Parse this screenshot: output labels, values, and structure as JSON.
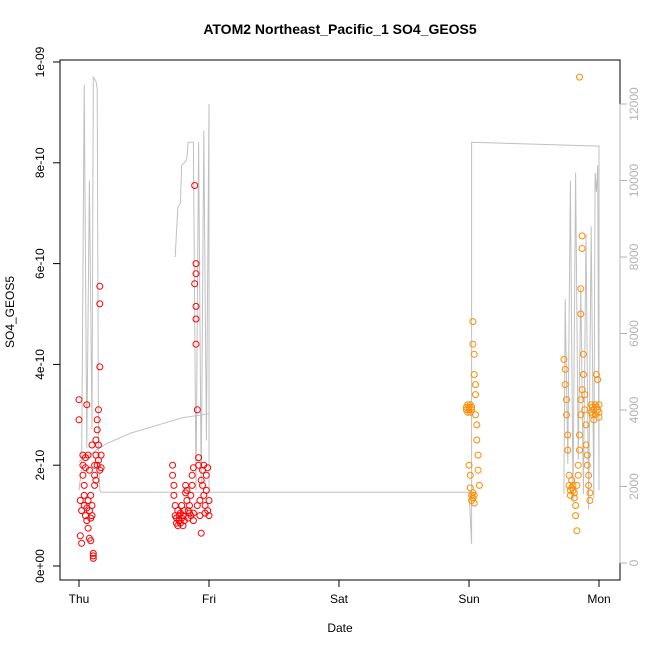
{
  "chart_data": {
    "type": "scatter",
    "title": "ATOM2 Northeast_Pacific_1 SO4_GEOS5",
    "xlabel": "Date",
    "ylabel": "SO4_GEOS5",
    "x_ticks": [
      "Thu",
      "Fri",
      "Sat",
      "Sun",
      "Mon"
    ],
    "y_ticks": [
      "0e+00",
      "2e-10",
      "4e-10",
      "6e-10",
      "8e-10",
      "1e-09"
    ],
    "y_tick_values": [
      0,
      2e-10,
      4e-10,
      6e-10,
      8e-10,
      1e-09
    ],
    "y_right_ticks": [
      "0",
      "2000",
      "4000",
      "6000",
      "8000",
      "10000",
      "12000"
    ],
    "y_right_tick_values": [
      0,
      2000,
      4000,
      6000,
      8000,
      10000,
      12000
    ],
    "xlim_days": [
      0,
      4
    ],
    "ylim": [
      0,
      1e-09
    ],
    "y_right_lim": [
      0,
      13400
    ],
    "colors": {
      "red": "#ff0000",
      "orange": "#ff8c00",
      "altitude": "#c0c0c0"
    },
    "series": [
      {
        "color": "red",
        "points": [
          [
            0.0,
            3.3e-10
          ],
          [
            0.0,
            2.9e-10
          ],
          [
            0.01,
            1.3e-10
          ],
          [
            0.01,
            6e-11
          ],
          [
            0.02,
            4.5e-11
          ],
          [
            0.02,
            1.1e-10
          ],
          [
            0.03,
            2.2e-10
          ],
          [
            0.03,
            2e-10
          ],
          [
            0.03,
            1.8e-10
          ],
          [
            0.04,
            1.6e-10
          ],
          [
            0.04,
            1.4e-10
          ],
          [
            0.04,
            1.2e-10
          ],
          [
            0.05,
            1e-10
          ],
          [
            0.05,
            2.15e-10
          ],
          [
            0.05,
            1.95e-10
          ],
          [
            0.06,
            9e-11
          ],
          [
            0.06,
            1.15e-10
          ],
          [
            0.06,
            3.2e-10
          ],
          [
            0.07,
            7.5e-11
          ],
          [
            0.07,
            1.3e-10
          ],
          [
            0.07,
            2.2e-10
          ],
          [
            0.08,
            5.5e-11
          ],
          [
            0.08,
            1.1e-10
          ],
          [
            0.08,
            1.9e-10
          ],
          [
            0.09,
            5e-11
          ],
          [
            0.09,
            9.5e-11
          ],
          [
            0.09,
            1.4e-10
          ],
          [
            0.1,
            1.2e-10
          ],
          [
            0.1,
            2.4e-10
          ],
          [
            0.1,
            1e-10
          ],
          [
            0.11,
            2.5e-11
          ],
          [
            0.11,
            1.5e-11
          ],
          [
            0.11,
            2e-11
          ],
          [
            0.12,
            1.6e-10
          ],
          [
            0.12,
            2e-10
          ],
          [
            0.12,
            1.8e-10
          ],
          [
            0.13,
            2.2e-10
          ],
          [
            0.13,
            2.5e-10
          ],
          [
            0.13,
            1.7e-10
          ],
          [
            0.14,
            2.7e-10
          ],
          [
            0.14,
            2.9e-10
          ],
          [
            0.14,
            2e-10
          ],
          [
            0.15,
            3.1e-10
          ],
          [
            0.15,
            2.1e-10
          ],
          [
            0.15,
            2.4e-10
          ],
          [
            0.16,
            1.9e-10
          ],
          [
            0.16,
            3.95e-10
          ],
          [
            0.16,
            5.55e-10
          ],
          [
            0.16,
            5.2e-10
          ],
          [
            0.17,
            2.2e-10
          ],
          [
            0.17,
            1.95e-10
          ],
          [
            0.72,
            2e-10
          ],
          [
            0.72,
            1.8e-10
          ],
          [
            0.73,
            1.6e-10
          ],
          [
            0.73,
            1.4e-10
          ],
          [
            0.74,
            1.2e-10
          ],
          [
            0.74,
            1e-10
          ],
          [
            0.75,
            8.5e-11
          ],
          [
            0.75,
            9.5e-11
          ],
          [
            0.76,
            1.1e-10
          ],
          [
            0.76,
            8e-11
          ],
          [
            0.77,
            9e-11
          ],
          [
            0.77,
            1e-10
          ],
          [
            0.78,
            8.5e-11
          ],
          [
            0.78,
            1.05e-10
          ],
          [
            0.79,
            9.5e-11
          ],
          [
            0.79,
            1.2e-10
          ],
          [
            0.8,
            1e-10
          ],
          [
            0.8,
            8e-11
          ],
          [
            0.81,
            9e-11
          ],
          [
            0.81,
            1.1e-10
          ],
          [
            0.82,
            1.45e-10
          ],
          [
            0.82,
            1.6e-10
          ],
          [
            0.83,
            1.5e-10
          ],
          [
            0.83,
            1.3e-10
          ],
          [
            0.84,
            1.1e-10
          ],
          [
            0.84,
            9.5e-11
          ],
          [
            0.85,
            1.2e-10
          ],
          [
            0.85,
            1.05e-10
          ],
          [
            0.86,
            1e-10
          ],
          [
            0.86,
            1.4e-10
          ],
          [
            0.87,
            1.6e-10
          ],
          [
            0.87,
            1.8e-10
          ],
          [
            0.88,
            1.95e-10
          ],
          [
            0.88,
            9e-11
          ],
          [
            0.88,
            1.05e-10
          ],
          [
            0.89,
            7.55e-10
          ],
          [
            0.89,
            5.6e-10
          ],
          [
            0.9,
            6e-10
          ],
          [
            0.9,
            5.8e-10
          ],
          [
            0.9,
            5.15e-10
          ],
          [
            0.9,
            4.9e-10
          ],
          [
            0.9,
            4.4e-10
          ],
          [
            0.91,
            3.1e-10
          ],
          [
            0.91,
            1.2e-10
          ],
          [
            0.92,
            2.15e-10
          ],
          [
            0.92,
            2e-10
          ],
          [
            0.93,
            1.3e-10
          ],
          [
            0.93,
            1e-10
          ],
          [
            0.94,
            6.5e-11
          ],
          [
            0.94,
            1.7e-10
          ],
          [
            0.95,
            1.9e-10
          ],
          [
            0.95,
            1.6e-10
          ],
          [
            0.96,
            2e-10
          ],
          [
            0.96,
            1.4e-10
          ],
          [
            0.97,
            1.2e-10
          ],
          [
            0.97,
            1.05e-10
          ],
          [
            0.98,
            1.8e-10
          ],
          [
            0.98,
            1.5e-10
          ],
          [
            0.99,
            1.95e-10
          ],
          [
            0.99,
            1.1e-10
          ],
          [
            1.0,
            1e-10
          ],
          [
            1.0,
            1.3e-10
          ]
        ]
      },
      {
        "color": "orange",
        "points": [
          [
            2.98,
            3.15e-10
          ],
          [
            2.98,
            3.1e-10
          ],
          [
            2.99,
            3.2e-10
          ],
          [
            2.99,
            3.05e-10
          ],
          [
            3.0,
            3.15e-10
          ],
          [
            3.0,
            3.1e-10
          ],
          [
            3.01,
            3.2e-10
          ],
          [
            3.01,
            3.05e-10
          ],
          [
            3.02,
            3.15e-10
          ],
          [
            3.02,
            3.1e-10
          ],
          [
            3.0,
            2e-10
          ],
          [
            3.01,
            1.8e-10
          ],
          [
            3.01,
            1.55e-10
          ],
          [
            3.02,
            1.4e-10
          ],
          [
            3.02,
            1.3e-10
          ],
          [
            3.03,
            1.45e-10
          ],
          [
            3.03,
            1.35e-10
          ],
          [
            3.04,
            1.4e-10
          ],
          [
            3.04,
            1.25e-10
          ],
          [
            3.03,
            4.85e-10
          ],
          [
            3.03,
            4.4e-10
          ],
          [
            3.04,
            4.2e-10
          ],
          [
            3.04,
            3.8e-10
          ],
          [
            3.05,
            3.6e-10
          ],
          [
            3.05,
            3.4e-10
          ],
          [
            3.05,
            3e-10
          ],
          [
            3.06,
            2.8e-10
          ],
          [
            3.06,
            2.5e-10
          ],
          [
            3.07,
            2.2e-10
          ],
          [
            3.07,
            1.9e-10
          ],
          [
            3.08,
            1.6e-10
          ],
          [
            3.73,
            4.1e-10
          ],
          [
            3.74,
            3.9e-10
          ],
          [
            3.74,
            3.6e-10
          ],
          [
            3.75,
            3.3e-10
          ],
          [
            3.75,
            3e-10
          ],
          [
            3.76,
            2.6e-10
          ],
          [
            3.76,
            2.3e-10
          ],
          [
            3.77,
            1.8e-10
          ],
          [
            3.77,
            1.6e-10
          ],
          [
            3.78,
            1.5e-10
          ],
          [
            3.78,
            1.4e-10
          ],
          [
            3.79,
            1.55e-10
          ],
          [
            3.79,
            1.7e-10
          ],
          [
            3.8,
            1.6e-10
          ],
          [
            3.8,
            1.5e-10
          ],
          [
            3.81,
            1.45e-10
          ],
          [
            3.81,
            1.35e-10
          ],
          [
            3.82,
            1.2e-10
          ],
          [
            3.82,
            1e-10
          ],
          [
            3.83,
            7e-11
          ],
          [
            3.83,
            1.6e-10
          ],
          [
            3.84,
            1.8e-10
          ],
          [
            3.84,
            2e-10
          ],
          [
            3.85,
            2.3e-10
          ],
          [
            3.85,
            2.6e-10
          ],
          [
            3.86,
            3e-10
          ],
          [
            3.86,
            3.3e-10
          ],
          [
            3.87,
            3.5e-10
          ],
          [
            3.87,
            6.55e-10
          ],
          [
            3.87,
            6.3e-10
          ],
          [
            3.86,
            5.5e-10
          ],
          [
            3.86,
            5e-10
          ],
          [
            3.85,
            9.7e-10
          ],
          [
            3.88,
            4.2e-10
          ],
          [
            3.88,
            3.8e-10
          ],
          [
            3.89,
            3.4e-10
          ],
          [
            3.89,
            3.1e-10
          ],
          [
            3.9,
            2.8e-10
          ],
          [
            3.9,
            2.4e-10
          ],
          [
            3.91,
            2.2e-10
          ],
          [
            3.91,
            2e-10
          ],
          [
            3.92,
            1.8e-10
          ],
          [
            3.92,
            1.6e-10
          ],
          [
            3.93,
            1.45e-10
          ],
          [
            3.93,
            1.3e-10
          ],
          [
            3.94,
            3.2e-10
          ],
          [
            3.94,
            3.05e-10
          ],
          [
            3.95,
            3.15e-10
          ],
          [
            3.95,
            3e-10
          ],
          [
            3.96,
            2.9e-10
          ],
          [
            3.96,
            3.1e-10
          ],
          [
            3.97,
            3.2e-10
          ],
          [
            3.97,
            3e-10
          ],
          [
            3.98,
            3.15e-10
          ],
          [
            3.98,
            3.8e-10
          ],
          [
            3.99,
            3.7e-10
          ],
          [
            3.99,
            3.1e-10
          ],
          [
            4.0,
            3.2e-10
          ],
          [
            4.0,
            3.05e-10
          ],
          [
            4.0,
            2.95e-10
          ]
        ]
      }
    ],
    "altitude_series": {
      "points": [
        [
          0.0,
          1900
        ],
        [
          0.02,
          2500
        ],
        [
          0.04,
          12500
        ],
        [
          0.06,
          3000
        ],
        [
          0.08,
          10000
        ],
        [
          0.1,
          3500
        ],
        [
          0.11,
          12700
        ],
        [
          0.13,
          12600
        ],
        [
          0.14,
          12400
        ],
        [
          0.15,
          3000
        ],
        [
          0.16,
          1900
        ],
        [
          0.17,
          1850
        ],
        [
          0.17,
          1850
        ],
        [
          0.5,
          1850
        ],
        [
          0.9,
          1850
        ],
        [
          1.0,
          1850
        ],
        [
          1.0,
          12000
        ],
        [
          0.98,
          3200
        ],
        [
          0.96,
          11300
        ],
        [
          0.94,
          2000
        ],
        [
          0.92,
          11000
        ],
        [
          0.9,
          1900
        ],
        [
          0.88,
          11000
        ],
        [
          0.84,
          11000
        ],
        [
          0.83,
          10600
        ],
        [
          0.82,
          10500
        ],
        [
          0.79,
          10400
        ],
        [
          0.78,
          9400
        ],
        [
          0.76,
          9300
        ],
        [
          0.74,
          8000
        ]
      ],
      "flight2": [
        [
          0.0,
          2650
        ],
        [
          0.2,
          3100
        ],
        [
          0.4,
          3400
        ],
        [
          0.6,
          3600
        ],
        [
          0.8,
          3800
        ],
        [
          1.0,
          3900
        ],
        [
          1.0,
          1850
        ],
        [
          3.0,
          1850
        ],
        [
          3.02,
          500
        ],
        [
          3.02,
          11000
        ],
        [
          4.0,
          10900
        ],
        [
          4.0,
          1900
        ],
        [
          3.99,
          10400
        ],
        [
          3.98,
          9700
        ],
        [
          3.97,
          10200
        ],
        [
          3.96,
          1700
        ],
        [
          3.94,
          8800
        ],
        [
          3.92,
          1400
        ],
        [
          3.9,
          8600
        ],
        [
          3.88,
          1800
        ],
        [
          3.86,
          7200
        ],
        [
          3.84,
          2700
        ],
        [
          3.82,
          10200
        ],
        [
          3.8,
          1600
        ],
        [
          3.78,
          10000
        ],
        [
          3.76,
          2600
        ],
        [
          3.74,
          6900
        ],
        [
          3.73,
          1800
        ]
      ]
    }
  }
}
